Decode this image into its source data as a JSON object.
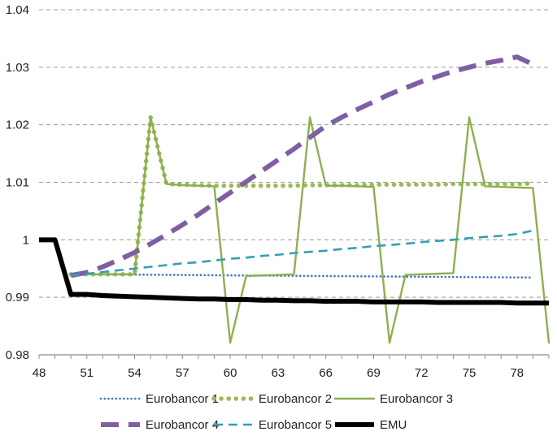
{
  "chart_data": {
    "type": "line",
    "title": "",
    "xlabel": "",
    "ylabel": "",
    "xlim": [
      48,
      80
    ],
    "ylim": [
      0.98,
      1.04
    ],
    "grid": "horizontal dashed",
    "legend_position": "bottom",
    "x_ticks": [
      "48",
      "51",
      "54",
      "57",
      "60",
      "63",
      "66",
      "69",
      "72",
      "75",
      "78"
    ],
    "y_ticks": [
      "0.98",
      "0.99",
      "1",
      "1.01",
      "1.02",
      "1.03",
      "1.04"
    ],
    "x": [
      48,
      49,
      50,
      51,
      52,
      53,
      54,
      55,
      56,
      57,
      58,
      59,
      60,
      61,
      62,
      63,
      64,
      65,
      66,
      67,
      68,
      69,
      70,
      71,
      72,
      73,
      74,
      75,
      76,
      77,
      78,
      79,
      80
    ],
    "series": [
      {
        "name": "Eurobancor 1",
        "color": "#4472C4",
        "style": "dotted",
        "values": [
          null,
          null,
          0.994,
          0.994,
          0.99398,
          0.99396,
          0.99394,
          0.99392,
          0.9939,
          0.99388,
          0.99386,
          0.99384,
          0.99382,
          0.9938,
          0.99378,
          0.99376,
          0.99374,
          0.99372,
          0.9937,
          0.99368,
          0.99366,
          0.99364,
          0.99362,
          0.9936,
          0.99358,
          0.99356,
          0.99354,
          0.99352,
          0.9935,
          0.99348,
          0.99346,
          0.99344,
          null
        ]
      },
      {
        "name": "Eurobancor 2",
        "color": "#9BBB59",
        "style": "round-dots",
        "values": [
          null,
          null,
          0.994,
          0.994,
          0.994,
          0.994,
          0.994,
          1.0213,
          1.0097,
          1.0096,
          1.0095,
          1.0094,
          1.0094,
          1.0094,
          1.0094,
          1.0094,
          1.0094,
          1.0095,
          1.0095,
          1.0095,
          1.0095,
          1.0096,
          1.0096,
          1.0096,
          1.0096,
          1.0096,
          1.0097,
          1.0097,
          1.0097,
          1.0097,
          1.0097,
          1.0098,
          null
        ]
      },
      {
        "name": "Eurobancor 3",
        "color": "#8CB04E",
        "style": "solid",
        "values": [
          null,
          null,
          0.994,
          0.994,
          0.994,
          0.994,
          0.994,
          1.0213,
          1.0097,
          1.0095,
          1.0094,
          1.0093,
          0.9821,
          0.9937,
          0.9938,
          0.9939,
          0.994,
          1.0213,
          1.0094,
          1.0094,
          1.0093,
          1.0092,
          0.9821,
          0.9939,
          0.994,
          0.9941,
          0.9942,
          1.0213,
          1.0093,
          1.0092,
          1.0091,
          1.009,
          0.9821
        ]
      },
      {
        "name": "Eurobancor 4",
        "color": "#7F5FA3",
        "style": "dashed-thick",
        "values": [
          null,
          null,
          0.9938,
          0.9943,
          0.9953,
          0.9965,
          0.9978,
          0.9993,
          1.0009,
          1.0026,
          1.0044,
          1.0063,
          1.0082,
          1.0101,
          1.012,
          1.0139,
          1.0158,
          1.0178,
          1.0198,
          1.0213,
          1.0227,
          1.024,
          1.0253,
          1.0264,
          1.0275,
          1.0284,
          1.0293,
          1.03,
          1.0307,
          1.0312,
          1.0318,
          1.0305,
          null
        ]
      },
      {
        "name": "Eurobancor 5",
        "color": "#31A0B8",
        "style": "dashed",
        "values": [
          null,
          null,
          0.9938,
          0.9941,
          0.9944,
          0.9947,
          0.995,
          0.9953,
          0.9956,
          0.9959,
          0.9961,
          0.9964,
          0.9967,
          0.9969,
          0.9972,
          0.9974,
          0.9977,
          0.9979,
          0.9981,
          0.9984,
          0.9986,
          0.9989,
          0.9991,
          0.9993,
          0.9996,
          0.9998,
          1.0,
          1.0003,
          1.0005,
          1.0007,
          1.001,
          1.0016,
          null
        ]
      },
      {
        "name": "EMU",
        "color": "#000000",
        "style": "solid-thick",
        "values": [
          1.0,
          1.0,
          0.9905,
          0.9905,
          0.9903,
          0.9902,
          0.9901,
          0.99,
          0.9899,
          0.9898,
          0.9897,
          0.9897,
          0.9896,
          0.9896,
          0.9895,
          0.9895,
          0.9894,
          0.9894,
          0.9893,
          0.9893,
          0.9893,
          0.9892,
          0.9892,
          0.9892,
          0.9892,
          0.9891,
          0.9891,
          0.9891,
          0.9891,
          0.9891,
          0.989,
          0.989,
          0.989
        ]
      }
    ]
  }
}
